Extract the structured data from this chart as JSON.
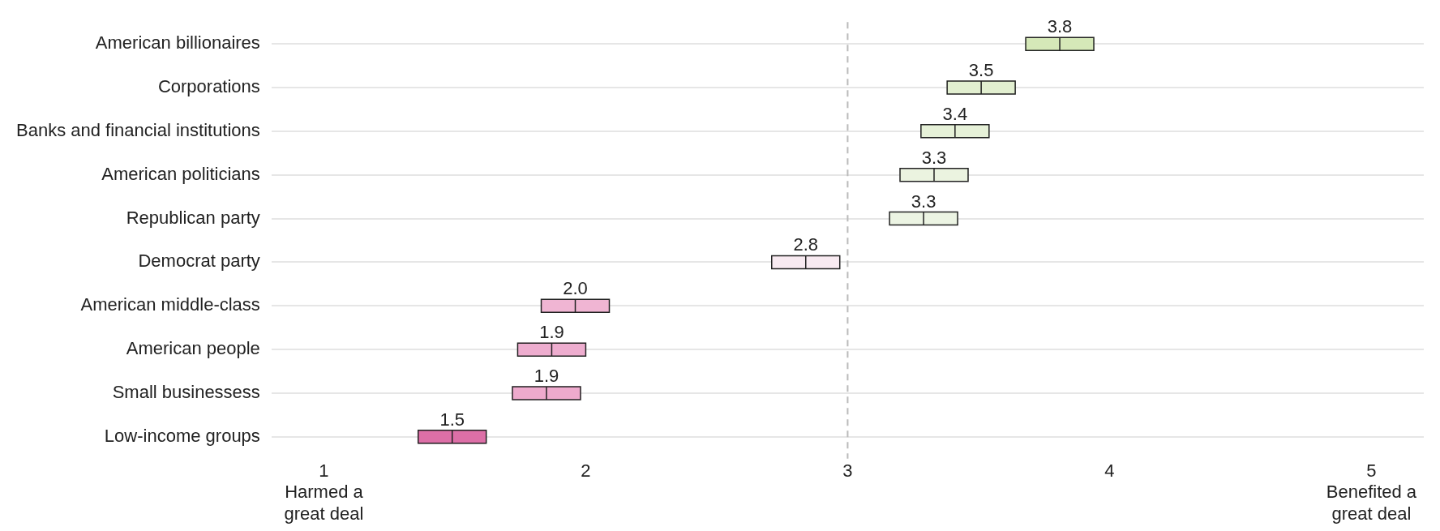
{
  "chart_data": {
    "type": "box",
    "orientation": "horizontal",
    "categories": [
      "American billionaires",
      "Corporations",
      "Banks and financial institutions",
      "American politicians",
      "Republican party",
      "Democrat party",
      "American middle-class",
      "American people",
      "Small businessess",
      "Low-income groups"
    ],
    "boxes": [
      {
        "low": 3.68,
        "q1": 3.68,
        "median": 3.81,
        "q3": 3.94,
        "high": 3.94
      },
      {
        "low": 3.38,
        "q1": 3.38,
        "median": 3.51,
        "q3": 3.64,
        "high": 3.64
      },
      {
        "low": 3.28,
        "q1": 3.28,
        "median": 3.41,
        "q3": 3.54,
        "high": 3.54
      },
      {
        "low": 3.2,
        "q1": 3.2,
        "median": 3.33,
        "q3": 3.46,
        "high": 3.46
      },
      {
        "low": 3.16,
        "q1": 3.16,
        "median": 3.29,
        "q3": 3.42,
        "high": 3.42
      },
      {
        "low": 2.71,
        "q1": 2.71,
        "median": 2.84,
        "q3": 2.97,
        "high": 2.97
      },
      {
        "low": 1.83,
        "q1": 1.83,
        "median": 1.96,
        "q3": 2.09,
        "high": 2.09
      },
      {
        "low": 1.74,
        "q1": 1.74,
        "median": 1.87,
        "q3": 2.0,
        "high": 2.0
      },
      {
        "low": 1.72,
        "q1": 1.72,
        "median": 1.85,
        "q3": 1.98,
        "high": 1.98
      },
      {
        "low": 1.36,
        "q1": 1.36,
        "median": 1.49,
        "q3": 1.62,
        "high": 1.62
      }
    ],
    "colors": [
      "#d5e8b8",
      "#e2efd0",
      "#e6f1d8",
      "#ebf3e0",
      "#ecf4e3",
      "#f8eaf1",
      "#f0b5d3",
      "#eeadcf",
      "#eeaacd",
      "#dd6fa7"
    ],
    "annotations": [
      {
        "text": "3.8",
        "x": 3.81,
        "y": "American billionaires"
      },
      {
        "text": "3.5",
        "x": 3.51,
        "y": "Corporations"
      },
      {
        "text": "3.4",
        "x": 3.41,
        "y": "Banks and financial institutions"
      },
      {
        "text": "3.3",
        "x": 3.33,
        "y": "American politicians"
      },
      {
        "text": "3.3",
        "x": 3.29,
        "y": "Republican party"
      },
      {
        "text": "2.8",
        "x": 2.84,
        "y": "Democrat party"
      },
      {
        "text": "2.0",
        "x": 1.96,
        "y": "American middle-class"
      },
      {
        "text": "1.9",
        "x": 1.87,
        "y": "American people"
      },
      {
        "text": "1.9",
        "x": 1.85,
        "y": "Small businessess"
      },
      {
        "text": "1.5",
        "x": 1.49,
        "y": "Low-income groups"
      }
    ],
    "xlim": [
      0.8,
      5.2
    ],
    "xticks": [
      {
        "value": 1,
        "label": "1\nHarmed a\ngreat deal"
      },
      2,
      3,
      4,
      {
        "value": 5,
        "label": "5\nBenefited a\ngreat deal"
      }
    ],
    "ref_lines": [
      {
        "axis": "x",
        "value": 3,
        "color": "#bbbbbb",
        "line_style": "dashed"
      }
    ],
    "grid": "y",
    "legend": false
  }
}
